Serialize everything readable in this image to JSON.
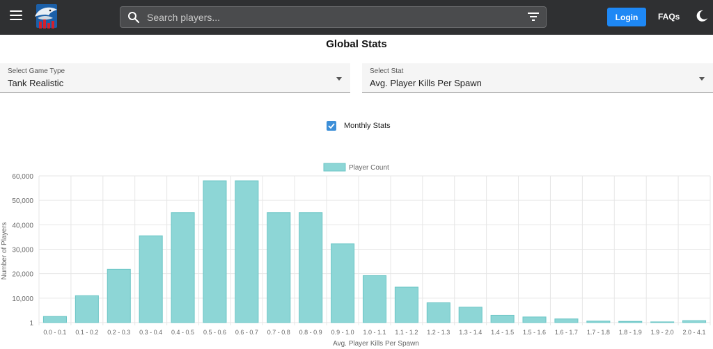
{
  "header": {
    "search_placeholder": "Search players...",
    "login_label": "Login",
    "faqs_label": "FAQs",
    "icons": [
      "menu-icon",
      "logo-icon",
      "search-icon",
      "filter-icon",
      "dark-mode-icon"
    ]
  },
  "page": {
    "title": "Global Stats"
  },
  "filters": {
    "game_type_label": "Select Game Type",
    "game_type_value": "Tank Realistic",
    "stat_label": "Select Stat",
    "stat_value": "Avg. Player Kills Per Spawn",
    "monthly_label": "Monthly Stats",
    "monthly_checked": true
  },
  "colors": {
    "topbar": "#2f3032",
    "accent": "#1e88f5",
    "bar_fill": "#8dd6d6",
    "bar_stroke": "#6cc6c6"
  },
  "chart_data": {
    "type": "bar",
    "categories": [
      "0.0 - 0.1",
      "0.1 - 0.2",
      "0.2 - 0.3",
      "0.3 - 0.4",
      "0.4 - 0.5",
      "0.5 - 0.6",
      "0.6 - 0.7",
      "0.7 - 0.8",
      "0.8 - 0.9",
      "0.9 - 1.0",
      "1.0 - 1.1",
      "1.1 - 1.2",
      "1.2 - 1.3",
      "1.3 - 1.4",
      "1.4 - 1.5",
      "1.5 - 1.6",
      "1.6 - 1.7",
      "1.7 - 1.8",
      "1.8 - 1.9",
      "1.9 - 2.0",
      "2.0 - 4.1"
    ],
    "series": [
      {
        "name": "Player Count",
        "values": [
          2500,
          11000,
          21800,
          35500,
          45000,
          58000,
          58000,
          45000,
          45000,
          32200,
          19200,
          14500,
          8100,
          6300,
          3000,
          2300,
          1500,
          600,
          500,
          300,
          800
        ]
      }
    ],
    "xlabel": "Avg. Player Kills Per Spawn",
    "ylabel": "Number of Players",
    "yticks": [
      "60,000",
      "50,000",
      "40,000",
      "30,000",
      "20,000",
      "10,000",
      "1"
    ],
    "ylim": [
      1,
      60000
    ],
    "grid": true,
    "legend": "top-center"
  }
}
